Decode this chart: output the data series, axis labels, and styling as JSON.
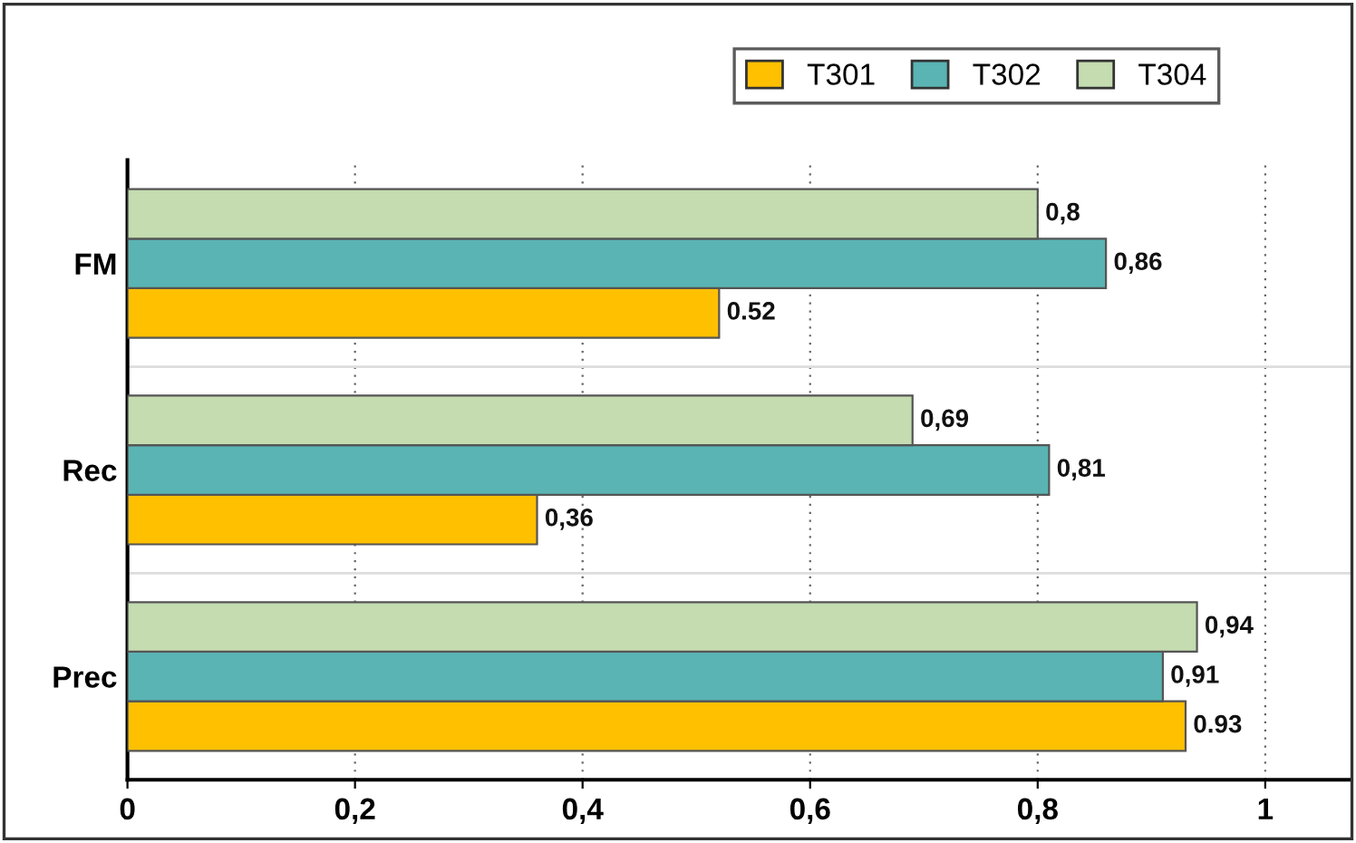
{
  "chart_data": {
    "type": "bar",
    "orientation": "horizontal",
    "categories": [
      "FM",
      "Rec",
      "Prec"
    ],
    "series": [
      {
        "name": "T301",
        "color": "#ffc000",
        "values": [
          0.52,
          0.36,
          0.93
        ],
        "value_labels": [
          "0.52",
          "0,36",
          "0.93"
        ]
      },
      {
        "name": "T302",
        "color": "#5ab4b4",
        "values": [
          0.86,
          0.81,
          0.91
        ],
        "value_labels": [
          "0,86",
          "0,81",
          "0,91"
        ]
      },
      {
        "name": "T304",
        "color": "#c4dcb0",
        "values": [
          0.8,
          0.69,
          0.94
        ],
        "value_labels": [
          "0,8",
          "0,69",
          "0,94"
        ]
      }
    ],
    "xlim": [
      0,
      1.075
    ],
    "xticks": [
      0,
      {
        "value": 0.2,
        "label": "0,2"
      },
      {
        "value": 0.4,
        "label": "0,4"
      },
      {
        "value": 0.6,
        "label": "0,6"
      },
      {
        "value": 0.8,
        "label": "0,8"
      },
      1
    ],
    "grid": "x",
    "legend": "top right"
  }
}
